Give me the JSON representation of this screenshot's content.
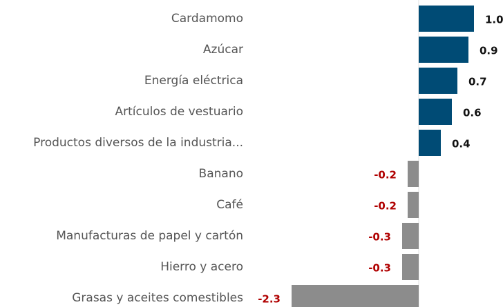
{
  "chart_data": {
    "type": "barh",
    "categories": [
      "Cardamomo",
      "Azúcar",
      "Energía eléctrica",
      "Artículos de vestuario",
      "Productos diversos de la industria...",
      "Banano",
      "Café",
      "Manufacturas de papel y cartón",
      "Hierro y acero",
      "Grasas y aceites comestibles"
    ],
    "values": [
      1.0,
      0.9,
      0.7,
      0.6,
      0.4,
      -0.2,
      -0.2,
      -0.3,
      -0.3,
      -2.3
    ],
    "value_labels": [
      "1.0",
      "0.9",
      "0.7",
      "0.6",
      "0.4",
      "-0.2",
      "-0.2",
      "-0.3",
      "-0.3",
      "-2.3"
    ],
    "colors": [
      "#004b75",
      "#004b75",
      "#004b75",
      "#004b75",
      "#004b75",
      "#8c8c8c",
      "#8c8c8c",
      "#8c8c8c",
      "#8c8c8c",
      "#8c8c8c"
    ],
    "label_colors": [
      "#111111",
      "#111111",
      "#111111",
      "#111111",
      "#111111",
      "#b00000",
      "#b00000",
      "#b00000",
      "#b00000",
      "#b00000"
    ],
    "xlim": [
      -2.5,
      1.5
    ]
  }
}
